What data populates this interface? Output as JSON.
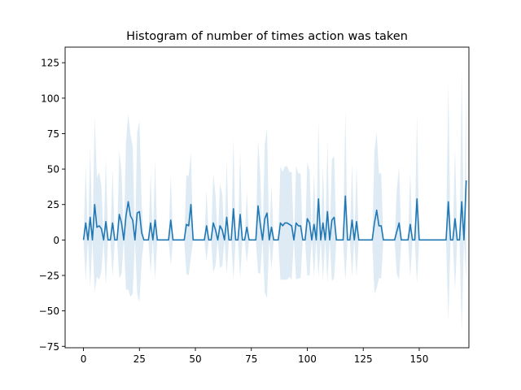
{
  "chart_data": {
    "type": "line",
    "title": "Histogram of number of times action was taken",
    "xlabel": "",
    "ylabel": "",
    "xlim": [
      -8.2,
      172.2
    ],
    "ylim": [
      -76,
      136
    ],
    "xticks": [
      0,
      25,
      50,
      75,
      100,
      125,
      150
    ],
    "yticks": [
      -75,
      -50,
      -25,
      0,
      25,
      50,
      75,
      100,
      125
    ],
    "grid": false,
    "series": [
      {
        "name": "",
        "color": "#1f77b4",
        "band_color": "#1f77b4",
        "band_opacity": 0.15,
        "y": [
          0,
          12,
          0,
          16,
          0,
          25,
          9,
          10,
          8,
          0,
          13,
          0,
          0,
          12,
          0,
          0,
          18,
          12,
          0,
          17,
          27,
          17,
          14,
          0,
          19,
          20,
          5,
          0,
          0,
          0,
          12,
          0,
          14,
          0,
          0,
          0,
          0,
          0,
          0,
          14,
          0,
          0,
          0,
          0,
          0,
          0,
          11,
          10,
          25,
          0,
          0,
          0,
          0,
          0,
          0,
          10,
          0,
          0,
          12,
          7,
          0,
          10,
          7,
          0,
          16,
          0,
          0,
          22,
          0,
          0,
          18,
          0,
          0,
          9,
          0,
          0,
          0,
          0,
          24,
          11,
          0,
          15,
          19,
          0,
          9,
          0,
          0,
          0,
          12,
          10,
          12,
          12,
          11,
          10,
          0,
          12,
          10,
          10,
          0,
          0,
          15,
          12,
          0,
          11,
          0,
          29,
          0,
          12,
          0,
          20,
          0,
          14,
          16,
          0,
          0,
          0,
          0,
          31,
          0,
          0,
          14,
          0,
          13,
          0,
          0,
          0,
          0,
          0,
          0,
          0,
          12,
          21,
          10,
          10,
          0,
          0,
          0,
          0,
          0,
          0,
          6,
          12,
          0,
          0,
          0,
          0,
          11,
          0,
          0,
          29,
          0,
          0,
          0,
          0,
          0,
          0,
          0,
          0,
          0,
          0,
          0,
          0,
          0,
          27,
          0,
          0,
          15,
          0,
          0,
          27,
          0,
          42
        ],
        "band_halfwidth": [
          0,
          40,
          0,
          50,
          0,
          62,
          35,
          38,
          30,
          0,
          45,
          0,
          0,
          38,
          0,
          0,
          45,
          36,
          0,
          52,
          62,
          57,
          52,
          0,
          57,
          64,
          20,
          0,
          0,
          0,
          35,
          0,
          42,
          0,
          0,
          0,
          0,
          0,
          0,
          32,
          0,
          0,
          0,
          0,
          0,
          0,
          35,
          35,
          37,
          0,
          0,
          0,
          0,
          0,
          0,
          25,
          0,
          0,
          35,
          25,
          0,
          30,
          25,
          0,
          40,
          0,
          0,
          50,
          0,
          0,
          45,
          0,
          0,
          25,
          0,
          0,
          0,
          0,
          47,
          35,
          0,
          52,
          60,
          0,
          30,
          0,
          0,
          0,
          40,
          38,
          40,
          40,
          37,
          38,
          0,
          40,
          37,
          37,
          0,
          0,
          40,
          37,
          0,
          37,
          0,
          55,
          0,
          40,
          0,
          50,
          0,
          43,
          43,
          0,
          0,
          0,
          0,
          60,
          0,
          0,
          40,
          0,
          39,
          0,
          0,
          0,
          0,
          0,
          0,
          0,
          50,
          55,
          37,
          37,
          0,
          0,
          0,
          0,
          0,
          0,
          30,
          40,
          0,
          0,
          0,
          0,
          37,
          0,
          0,
          60,
          0,
          0,
          0,
          0,
          0,
          0,
          0,
          0,
          0,
          0,
          0,
          0,
          0,
          85,
          0,
          0,
          50,
          0,
          0,
          92,
          0,
          70
        ]
      }
    ]
  }
}
